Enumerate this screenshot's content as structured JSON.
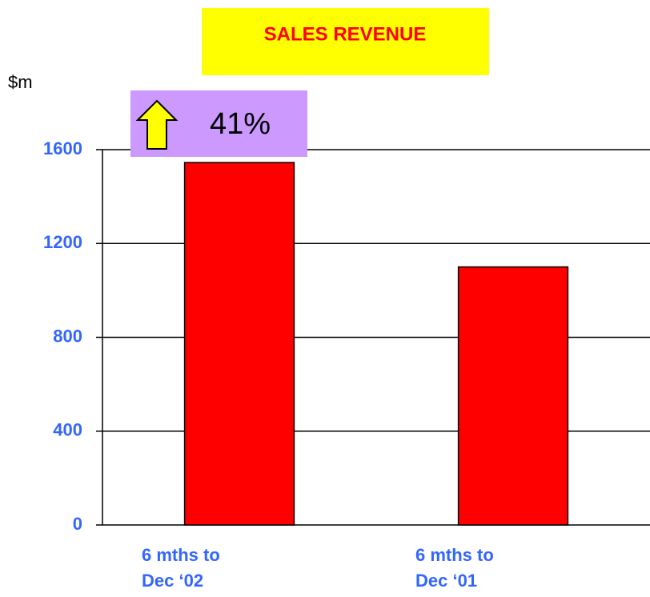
{
  "chart_data": {
    "type": "bar",
    "title": "SALES REVENUE",
    "y_axis_label": "$m",
    "annotation": "41%",
    "categories": [
      "6 mths to\nDec ‘02",
      "6 mths to\nDec ‘01"
    ],
    "values": [
      1545,
      1100
    ],
    "color": "#ff0000",
    "ylim": [
      0,
      1600
    ],
    "yticks": [
      0,
      400,
      800,
      1200,
      1600
    ],
    "grid": true
  }
}
